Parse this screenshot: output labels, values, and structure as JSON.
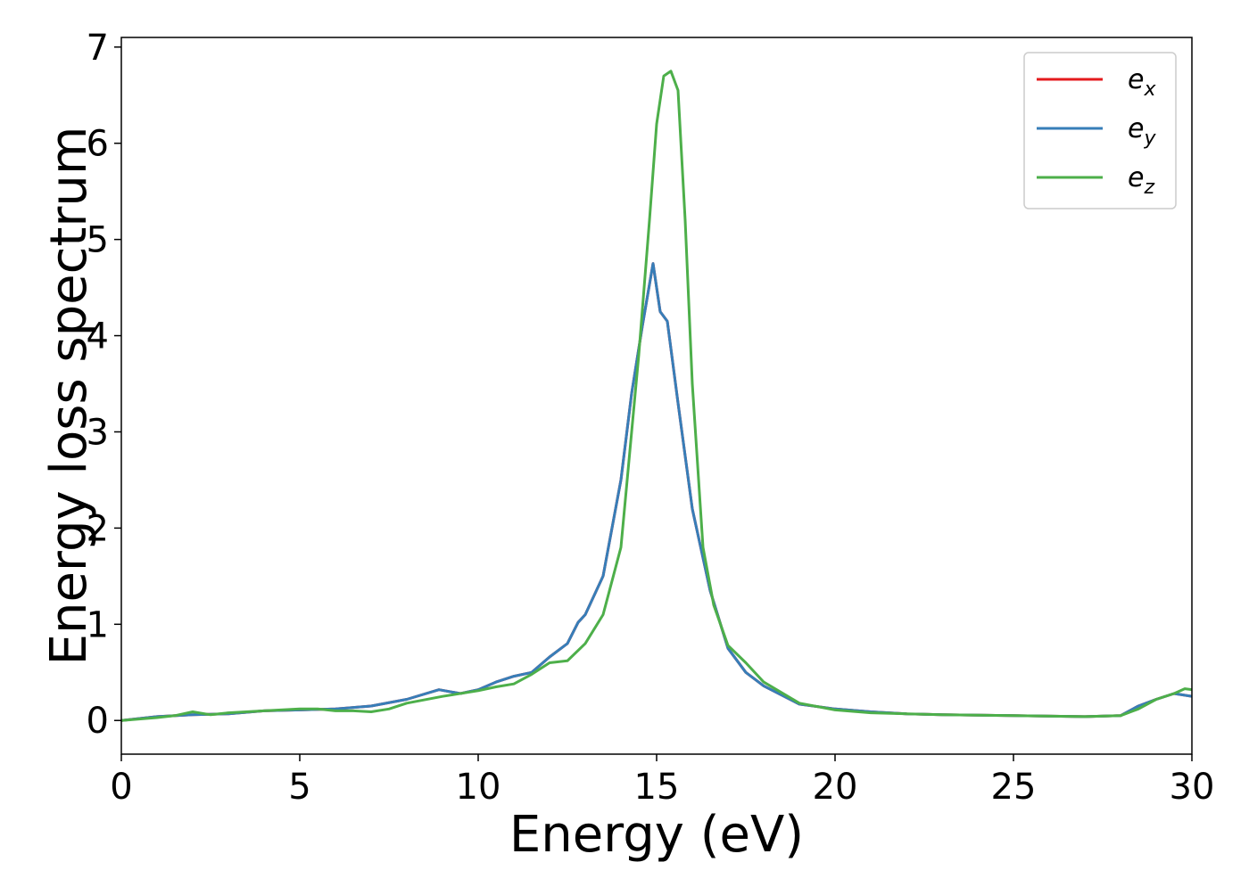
{
  "chart_data": {
    "type": "line",
    "title": "",
    "xlabel": "Energy (eV)",
    "ylabel": "Energy loss spectrum",
    "xlim": [
      0,
      30
    ],
    "ylim": [
      -0.35,
      7.1
    ],
    "x_ticks": [
      0,
      5,
      10,
      15,
      20,
      25,
      30
    ],
    "y_ticks": [
      0,
      1,
      2,
      3,
      4,
      5,
      6,
      7
    ],
    "grid": false,
    "legend_position": "top-right",
    "series": [
      {
        "name": "e_x",
        "legend_base": "e",
        "legend_sub": "x",
        "color": "#e41a1c",
        "x": [
          0,
          1,
          2,
          3,
          4,
          5,
          6,
          7,
          8,
          8.9,
          9.5,
          10,
          10.5,
          11,
          11.5,
          12,
          12.5,
          12.8,
          13,
          13.5,
          14,
          14.3,
          14.6,
          14.9,
          15.1,
          15.3,
          15.6,
          16,
          16.5,
          17,
          17.5,
          18,
          19,
          20,
          21,
          22,
          23,
          25,
          27,
          28,
          28.5,
          29,
          29.5,
          30
        ],
        "values": [
          0.0,
          0.04,
          0.06,
          0.07,
          0.1,
          0.11,
          0.12,
          0.15,
          0.22,
          0.32,
          0.28,
          0.32,
          0.4,
          0.46,
          0.5,
          0.66,
          0.8,
          1.02,
          1.1,
          1.5,
          2.5,
          3.4,
          4.1,
          4.75,
          4.25,
          4.15,
          3.3,
          2.2,
          1.35,
          0.75,
          0.5,
          0.36,
          0.17,
          0.12,
          0.09,
          0.07,
          0.06,
          0.05,
          0.04,
          0.05,
          0.15,
          0.22,
          0.28,
          0.25
        ]
      },
      {
        "name": "e_y",
        "legend_base": "e",
        "legend_sub": "y",
        "color": "#377eb8",
        "x": [
          0,
          1,
          2,
          3,
          4,
          5,
          6,
          7,
          8,
          8.9,
          9.5,
          10,
          10.5,
          11,
          11.5,
          12,
          12.5,
          12.8,
          13,
          13.5,
          14,
          14.3,
          14.6,
          14.9,
          15.1,
          15.3,
          15.6,
          16,
          16.5,
          17,
          17.5,
          18,
          19,
          20,
          21,
          22,
          23,
          25,
          27,
          28,
          28.5,
          29,
          29.5,
          30
        ],
        "values": [
          0.0,
          0.04,
          0.06,
          0.07,
          0.1,
          0.11,
          0.12,
          0.15,
          0.22,
          0.32,
          0.28,
          0.32,
          0.4,
          0.46,
          0.5,
          0.66,
          0.8,
          1.02,
          1.1,
          1.5,
          2.5,
          3.4,
          4.1,
          4.75,
          4.25,
          4.15,
          3.3,
          2.2,
          1.35,
          0.75,
          0.5,
          0.36,
          0.17,
          0.12,
          0.09,
          0.07,
          0.06,
          0.05,
          0.04,
          0.05,
          0.15,
          0.22,
          0.28,
          0.25
        ]
      },
      {
        "name": "e_z",
        "legend_base": "e",
        "legend_sub": "z",
        "color": "#4daf4a",
        "x": [
          0,
          1,
          1.5,
          2,
          2.5,
          3,
          3.5,
          4,
          5,
          5.5,
          6,
          6.5,
          7,
          7.5,
          8,
          9,
          10,
          10.5,
          11,
          11.5,
          12,
          12.5,
          13,
          13.5,
          14,
          14.5,
          14.8,
          15.0,
          15.2,
          15.4,
          15.6,
          15.8,
          16.0,
          16.3,
          16.6,
          17,
          17.5,
          18,
          19,
          20,
          21,
          23,
          25,
          27,
          28,
          28.5,
          29,
          29.5,
          29.8,
          30
        ],
        "values": [
          0.0,
          0.03,
          0.05,
          0.09,
          0.06,
          0.08,
          0.09,
          0.1,
          0.12,
          0.12,
          0.1,
          0.1,
          0.09,
          0.12,
          0.18,
          0.25,
          0.31,
          0.35,
          0.38,
          0.48,
          0.6,
          0.62,
          0.8,
          1.1,
          1.8,
          3.8,
          5.2,
          6.2,
          6.7,
          6.75,
          6.55,
          5.2,
          3.5,
          1.8,
          1.2,
          0.78,
          0.6,
          0.4,
          0.18,
          0.11,
          0.08,
          0.06,
          0.05,
          0.04,
          0.05,
          0.12,
          0.22,
          0.28,
          0.33,
          0.32
        ]
      }
    ]
  }
}
